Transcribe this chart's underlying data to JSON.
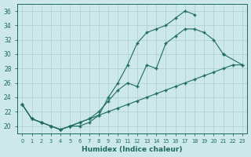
{
  "xlabel": "Humidex (Indice chaleur)",
  "bg_color": "#cce8e8",
  "grid_color": "#aacfcf",
  "line_color": "#1e6b5e",
  "xlim": [
    -0.5,
    23.5
  ],
  "ylim": [
    19.0,
    37.0
  ],
  "xticks": [
    0,
    1,
    2,
    3,
    4,
    5,
    6,
    7,
    8,
    9,
    10,
    11,
    12,
    13,
    14,
    15,
    16,
    17,
    18,
    19,
    20,
    21,
    22,
    23
  ],
  "yticks": [
    20,
    22,
    24,
    26,
    28,
    30,
    32,
    34,
    36
  ],
  "line1_x": [
    0,
    1,
    2,
    3,
    4,
    5,
    6,
    7,
    8,
    9,
    10,
    11,
    12,
    13,
    14,
    15,
    16,
    17,
    18
  ],
  "line1_y": [
    23,
    21,
    20.5,
    20,
    19.5,
    20.0,
    20.0,
    20.5,
    21.5,
    24.0,
    26.0,
    28.5,
    31.5,
    33.0,
    33.5,
    34.0,
    35.0,
    36.0,
    35.5
  ],
  "line2_x": [
    0,
    1,
    2,
    3,
    4,
    5,
    6,
    7,
    8,
    9,
    10,
    11,
    12,
    13,
    14,
    15,
    16,
    17,
    18,
    19,
    20,
    21,
    22,
    23
  ],
  "line2_y": [
    23,
    21,
    20.5,
    20,
    19.5,
    20.0,
    20.5,
    21.0,
    22.0,
    23.5,
    25.0,
    26.0,
    25.5,
    28.5,
    28.0,
    31.5,
    32.5,
    33.5,
    33.5,
    33.0,
    32.0,
    30.0,
    null,
    28.5
  ],
  "line3_x": [
    0,
    1,
    2,
    3,
    4,
    5,
    6,
    7,
    8,
    9,
    10,
    11,
    12,
    13,
    14,
    15,
    16,
    17,
    18,
    19,
    20,
    21,
    22,
    23
  ],
  "line3_y": [
    23,
    21,
    20.5,
    20,
    19.5,
    20.0,
    20.5,
    21.0,
    21.5,
    22.0,
    22.5,
    23.0,
    23.5,
    24.0,
    24.5,
    25.0,
    25.5,
    26.0,
    26.5,
    27.0,
    27.5,
    28.0,
    28.5,
    28.5
  ]
}
